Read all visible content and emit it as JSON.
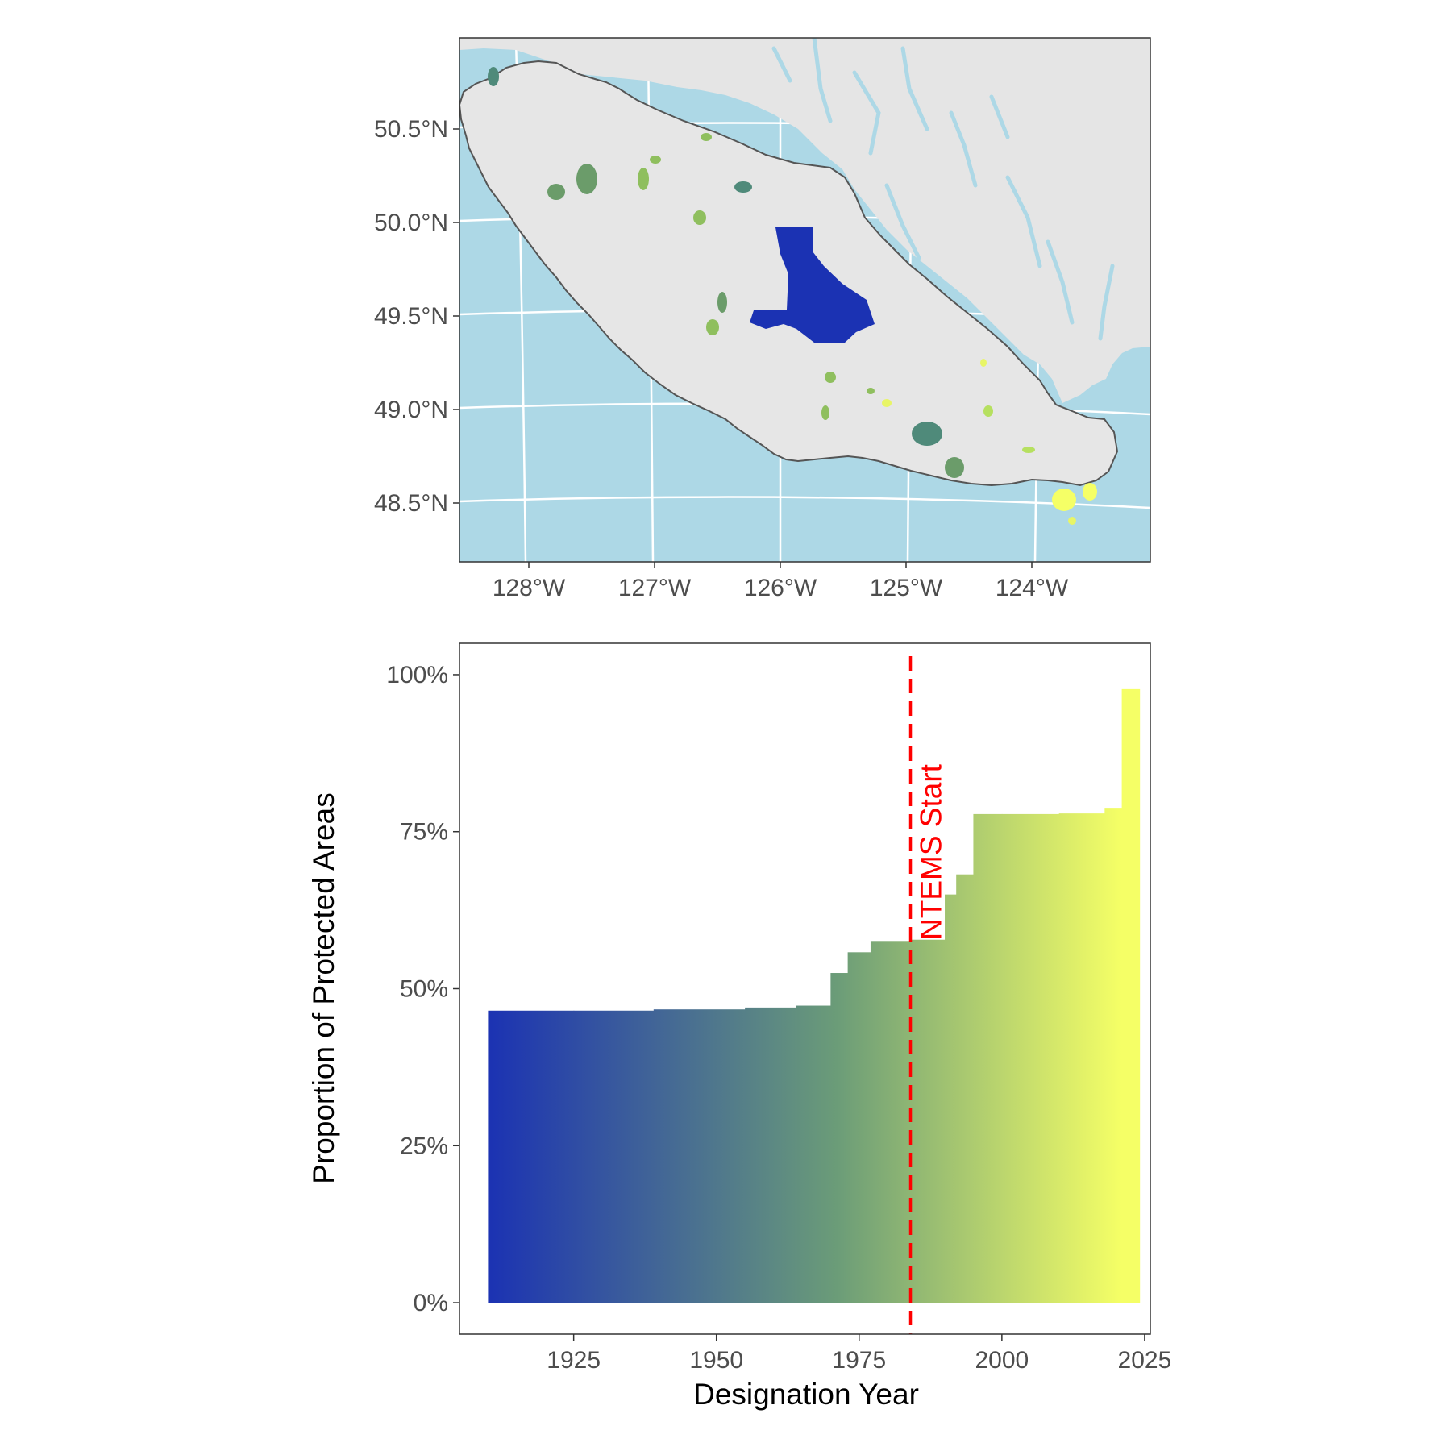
{
  "colors": {
    "ocean": "#add8e6",
    "mainland": "#e5e5e5",
    "island": "#e6e6e6",
    "island_outline": "#555555",
    "graticule": "#ffffff",
    "panel_border": "#333333",
    "ntems_line": "#ff0000",
    "gradient_start": "#1b32b3",
    "gradient_mid": "#6b9c78",
    "gradient_end": "#f5ff66"
  },
  "chart_data": [
    {
      "type": "map",
      "lat_ticks": [
        "50.5°N",
        "50.0°N",
        "49.5°N",
        "49.0°N",
        "48.5°N"
      ],
      "lon_ticks": [
        "128°W",
        "127°W",
        "126°W",
        "125°W",
        "124°W"
      ],
      "lat_range": [
        48.2,
        50.95
      ],
      "lon_range": [
        -128.55,
        -123.0
      ],
      "grid": true,
      "protected_area_palette": [
        "#1b32b3",
        "#4f8a7a",
        "#6b9c6a",
        "#8fbf5e",
        "#b6e060",
        "#e8f566",
        "#f5ff66"
      ]
    },
    {
      "type": "area",
      "title": "",
      "xlabel": "Designation Year",
      "ylabel": "Proportion of Protected Areas",
      "xlim": [
        1905,
        2026
      ],
      "ylim": [
        -0.05,
        1.05
      ],
      "x_ticks": [
        "1925",
        "1950",
        "1975",
        "2000",
        "2025"
      ],
      "x_tick_values": [
        1925,
        1950,
        1975,
        2000,
        2025
      ],
      "y_ticks": [
        "0%",
        "25%",
        "50%",
        "75%",
        "100%"
      ],
      "y_tick_values": [
        0,
        0.25,
        0.5,
        0.75,
        1.0
      ],
      "x": [
        1910,
        1925,
        1939,
        1955,
        1964,
        1970,
        1973,
        1977,
        1984,
        1990,
        1992,
        1995,
        2000,
        2010,
        2018,
        2021
      ],
      "y": [
        0.465,
        0.465,
        0.467,
        0.47,
        0.473,
        0.525,
        0.558,
        0.576,
        0.578,
        0.65,
        0.682,
        0.778,
        0.778,
        0.779,
        0.788,
        0.977
      ],
      "x_end": 2021,
      "annotation": {
        "label": "NTEMS Start",
        "x": 1984
      }
    }
  ]
}
